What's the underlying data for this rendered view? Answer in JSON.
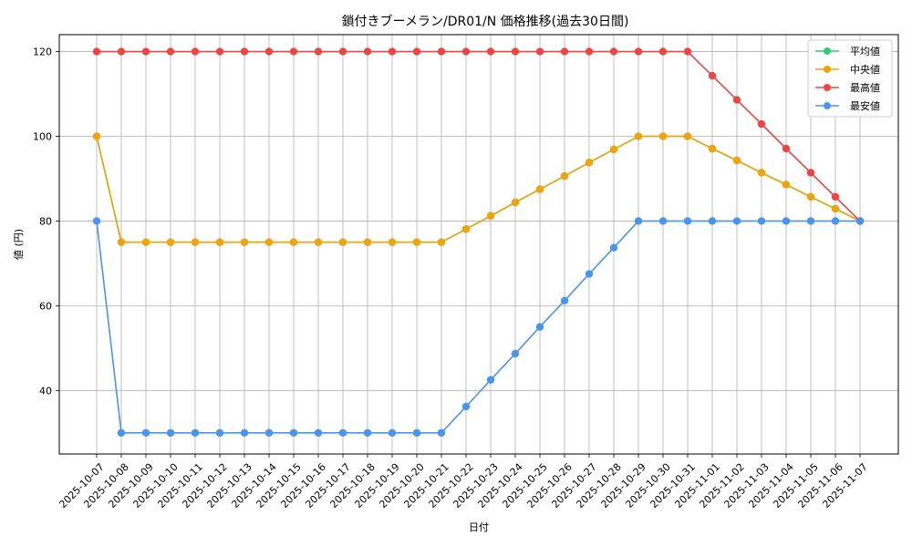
{
  "chart_data": {
    "type": "line",
    "title": "鎖付きブーメラン/DR01/N 価格推移(過去30日間)",
    "xlabel": "日付",
    "ylabel": "値 (円)",
    "ylim": [
      25,
      124
    ],
    "yticks": [
      40,
      60,
      80,
      100,
      120
    ],
    "grid": true,
    "legend_position": "top-right",
    "categories": [
      "2025-10-07",
      "2025-10-08",
      "2025-10-09",
      "2025-10-10",
      "2025-10-11",
      "2025-10-12",
      "2025-10-13",
      "2025-10-14",
      "2025-10-15",
      "2025-10-16",
      "2025-10-17",
      "2025-10-18",
      "2025-10-19",
      "2025-10-20",
      "2025-10-21",
      "2025-10-22",
      "2025-10-23",
      "2025-10-24",
      "2025-10-25",
      "2025-10-26",
      "2025-10-27",
      "2025-10-28",
      "2025-10-29",
      "2025-10-30",
      "2025-10-31",
      "2025-11-01",
      "2025-11-02",
      "2025-11-03",
      "2025-11-04",
      "2025-11-05",
      "2025-11-06",
      "2025-11-07"
    ],
    "series": [
      {
        "name": "平均値",
        "color": "#2ecc71",
        "values": [
          100,
          75,
          75,
          75,
          75,
          75,
          75,
          75,
          75,
          75,
          75,
          75,
          75,
          75,
          75,
          78.1,
          81.2,
          84.4,
          87.5,
          90.6,
          93.8,
          96.9,
          100,
          100,
          100,
          97.1,
          94.3,
          91.4,
          88.6,
          85.7,
          82.9,
          80
        ]
      },
      {
        "name": "中央値",
        "color": "#f0a30a",
        "values": [
          100,
          75,
          75,
          75,
          75,
          75,
          75,
          75,
          75,
          75,
          75,
          75,
          75,
          75,
          75,
          78.1,
          81.2,
          84.4,
          87.5,
          90.6,
          93.8,
          96.9,
          100,
          100,
          100,
          97.1,
          94.3,
          91.4,
          88.6,
          85.7,
          82.9,
          80
        ]
      },
      {
        "name": "最高値",
        "color": "#ef4444",
        "values": [
          120,
          120,
          120,
          120,
          120,
          120,
          120,
          120,
          120,
          120,
          120,
          120,
          120,
          120,
          120,
          120,
          120,
          120,
          120,
          120,
          120,
          120,
          120,
          120,
          120,
          114.3,
          108.6,
          102.9,
          97.1,
          91.4,
          85.7,
          80
        ]
      },
      {
        "name": "最安値",
        "color": "#4a94f0",
        "values": [
          80,
          30,
          30,
          30,
          30,
          30,
          30,
          30,
          30,
          30,
          30,
          30,
          30,
          30,
          30,
          36.2,
          42.5,
          48.7,
          55,
          61.2,
          67.5,
          73.7,
          80,
          80,
          80,
          80,
          80,
          80,
          80,
          80,
          80,
          80
        ]
      }
    ]
  }
}
